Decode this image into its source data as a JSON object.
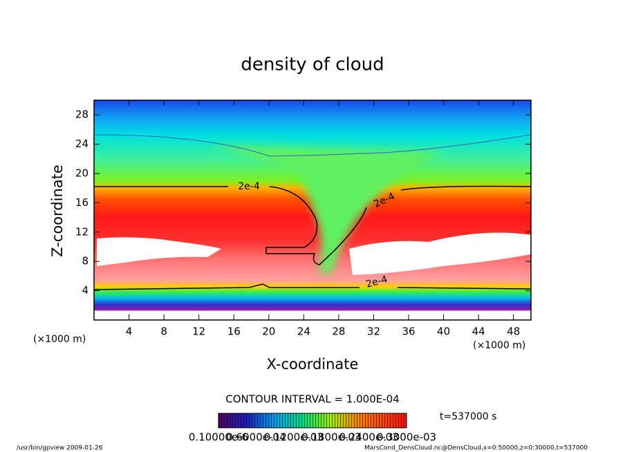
{
  "chart_data": {
    "type": "contour",
    "title": "density of cloud",
    "xlabel": "X-coordinate",
    "ylabel": "Z-coordinate",
    "x_unit": "(×1000 m)",
    "y_unit": "(×1000 m)",
    "xlim": [
      0,
      50
    ],
    "ylim": [
      0,
      30
    ],
    "xticks": [
      4,
      8,
      12,
      16,
      20,
      24,
      28,
      32,
      36,
      40,
      44,
      48
    ],
    "yticks": [
      4,
      8,
      12,
      16,
      20,
      24,
      28
    ],
    "contour_labels": [
      "2e-4",
      "2e-4",
      "2e-4"
    ],
    "contour_interval": "CONTOUR INTERVAL = 1.000E-04",
    "colorbar_labels": [
      "0.10000e-6",
      "0.6000e-04",
      "0.1200e-03",
      "0.1800e-03",
      "0.2400e-03",
      "0.3000e-03"
    ],
    "time_label": "t=537000 s",
    "footer_left": "/usr/bin/gpview  2009-01-26",
    "footer_right": "MarsCond_DensCloud.nc@DensCloud,x=0:50000,z=0:30000,t=537000"
  }
}
